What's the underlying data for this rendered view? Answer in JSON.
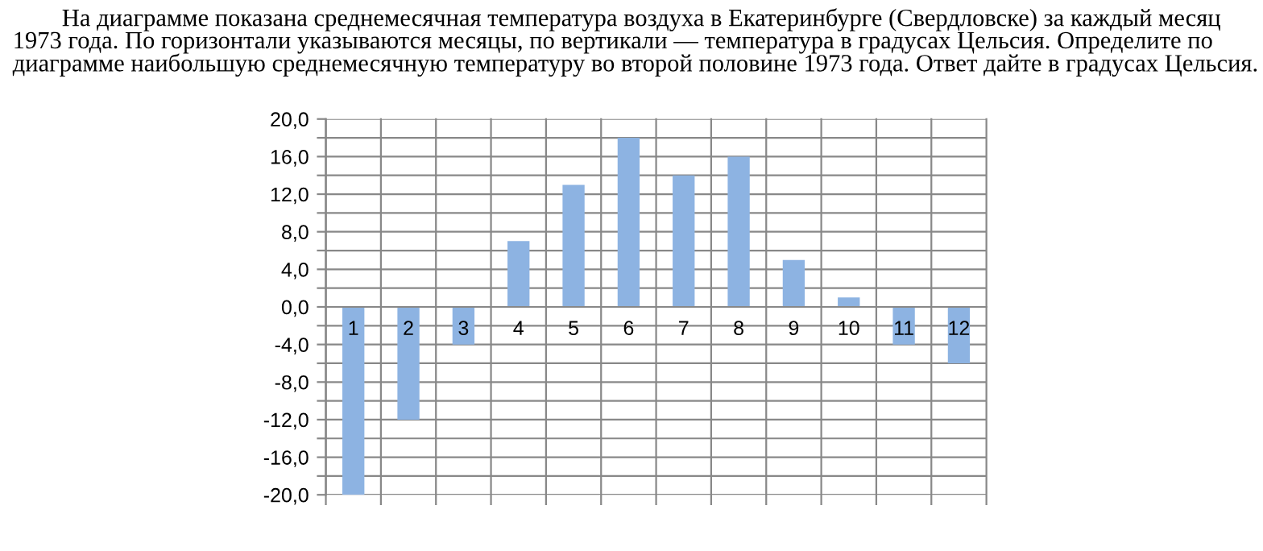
{
  "chart_data": {
    "type": "bar",
    "title": "На диаграмме показана среднемесячная температура воздуха в Екатеринбурге (Свердловске) за каждый месяц 1973 года. По горизонтали указываются месяцы, по вертикали — температура в градусах Цельсия. Определите по диаграмме наибольшую среднемесячную температуру во второй половине 1973 года. Ответ дайте в градусах Цельсия.",
    "categories": [
      "1",
      "2",
      "3",
      "4",
      "5",
      "6",
      "7",
      "8",
      "9",
      "10",
      "11",
      "12"
    ],
    "values": [
      -20,
      -12,
      -4,
      7,
      13,
      18,
      14,
      16,
      5,
      1,
      -4,
      -6
    ],
    "color": "#8db3e2",
    "ylim": [
      -20,
      20
    ],
    "yticks": [
      {
        "value": -20,
        "label": "-20,0"
      },
      {
        "value": -18,
        "label": null
      },
      {
        "value": -16,
        "label": "-16,0"
      },
      {
        "value": -14,
        "label": null
      },
      {
        "value": -12,
        "label": "-12,0"
      },
      {
        "value": -10,
        "label": null
      },
      {
        "value": -8,
        "label": "-8,0"
      },
      {
        "value": -6,
        "label": null
      },
      {
        "value": -4,
        "label": "-4,0"
      },
      {
        "value": -2,
        "label": null
      },
      {
        "value": 0,
        "label": "0,0"
      },
      {
        "value": 2,
        "label": null
      },
      {
        "value": 4,
        "label": "4,0"
      },
      {
        "value": 6,
        "label": null
      },
      {
        "value": 8,
        "label": "8,0"
      },
      {
        "value": 10,
        "label": null
      },
      {
        "value": 12,
        "label": "12,0"
      },
      {
        "value": 14,
        "label": null
      },
      {
        "value": 16,
        "label": "16,0"
      },
      {
        "value": 18,
        "label": null
      },
      {
        "value": 20,
        "label": "20,0"
      }
    ],
    "grid": true
  }
}
